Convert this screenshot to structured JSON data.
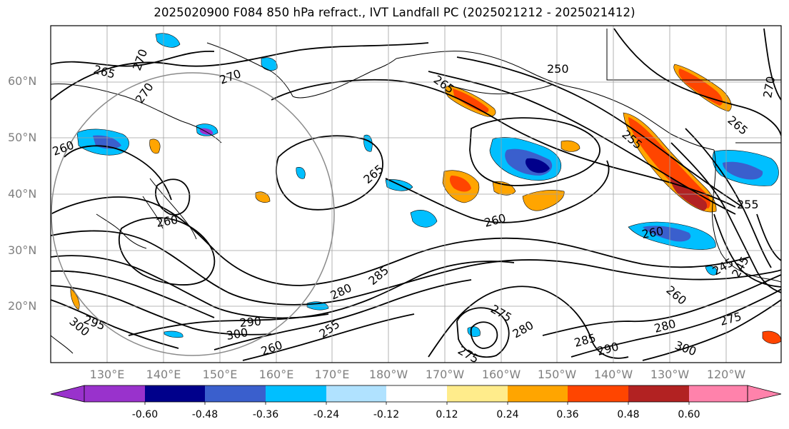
{
  "title": "2025020900 F084 850 hPa refract., IVT Landfall PC (2025021212 - 2025021412)",
  "lat_labels": [
    "60°N",
    "50°N",
    "40°N",
    "30°N",
    "20°N"
  ],
  "lon_labels": [
    "130°E",
    "140°E",
    "150°E",
    "160°E",
    "170°E",
    "180°W",
    "170°W",
    "160°W",
    "150°W",
    "140°W",
    "130°W",
    "120°W"
  ],
  "contour_labels": [
    "265",
    "270",
    "270",
    "270",
    "260",
    "265",
    "265",
    "260",
    "250",
    "255",
    "265",
    "270",
    "260",
    "260",
    "255",
    "245",
    "245",
    "260",
    "280",
    "285",
    "300",
    "290",
    "295",
    "300",
    "275",
    "280",
    "275",
    "285",
    "290",
    "280",
    "300",
    "275",
    "255",
    "260"
  ],
  "colorbar": {
    "ticks": [
      "-0.60",
      "-0.48",
      "-0.36",
      "-0.24",
      "-0.12",
      "0.12",
      "0.24",
      "0.36",
      "0.48",
      "0.60"
    ],
    "colors": [
      "#9932cc",
      "#00008b",
      "#3a5fcd",
      "#00bfff",
      "#b0e2ff",
      "#ffffff",
      "#ffec8b",
      "#ffa500",
      "#ff4500",
      "#b22222",
      "#ff82ab"
    ]
  }
}
